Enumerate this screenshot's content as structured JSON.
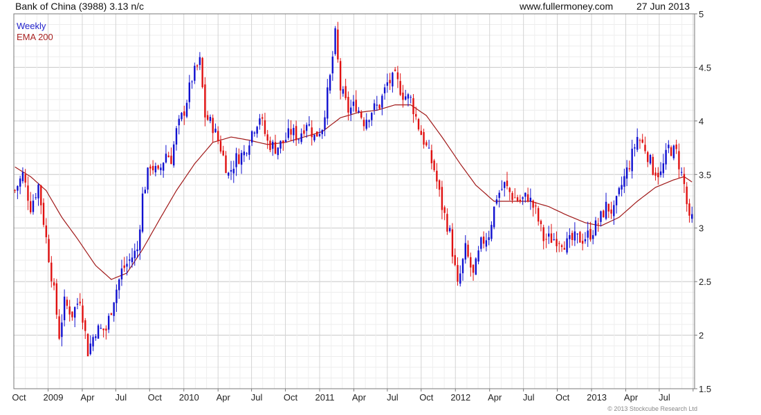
{
  "header": {
    "title": "Bank of China (3988) 3.13 n/c",
    "site": "www.fullermoney.com",
    "date": "27 Jun 2013"
  },
  "footer": {
    "copyright": "© 2013 Stockcube Research Ltd"
  },
  "colors": {
    "up": "#1010d0",
    "down": "#e01010",
    "ema": "#a01818",
    "grid": "#d8d8d8",
    "legend_weekly": "#2222cc",
    "legend_ema": "#aa2222"
  },
  "chart_data": {
    "type": "candlestick",
    "title": "Bank of China (3988) 3.13 n/c",
    "legend": [
      {
        "name": "Weekly",
        "color": "#2222cc"
      },
      {
        "name": "EMA 200",
        "color": "#aa2222"
      }
    ],
    "legend_position": "top-left",
    "ylim": [
      1.5,
      5.0
    ],
    "y_ticks": [
      "1.5",
      "2",
      "2.5",
      "3",
      "3.5",
      "4",
      "4.5",
      "5"
    ],
    "y_axis_side": "right",
    "grid": true,
    "x_labels": [
      "Oct",
      "2009",
      "Apr",
      "Jul",
      "Oct",
      "2010",
      "Apr",
      "Jul",
      "Oct",
      "2011",
      "Apr",
      "Jul",
      "Oct",
      "2012",
      "Apr",
      "Jul",
      "Oct",
      "2013",
      "Apr",
      "Jul"
    ],
    "x_range": [
      "2008-07-01",
      "2013-07-05"
    ],
    "close_path": [
      [
        "2008-07-04",
        3.35
      ],
      [
        "2008-07-25",
        3.5
      ],
      [
        "2008-08-15",
        3.2
      ],
      [
        "2008-09-05",
        3.4
      ],
      [
        "2008-09-26",
        2.9
      ],
      [
        "2008-10-17",
        2.4
      ],
      [
        "2008-10-31",
        2.0
      ],
      [
        "2008-11-14",
        2.3
      ],
      [
        "2008-12-05",
        2.2
      ],
      [
        "2008-12-26",
        2.35
      ],
      [
        "2009-01-16",
        1.85
      ],
      [
        "2009-02-06",
        2.05
      ],
      [
        "2009-03-06",
        2.05
      ],
      [
        "2009-03-27",
        2.35
      ],
      [
        "2009-04-17",
        2.6
      ],
      [
        "2009-05-08",
        2.7
      ],
      [
        "2009-05-29",
        2.8
      ],
      [
        "2009-06-12",
        3.3
      ],
      [
        "2009-07-03",
        3.6
      ],
      [
        "2009-07-24",
        3.5
      ],
      [
        "2009-08-14",
        3.7
      ],
      [
        "2009-08-28",
        3.65
      ],
      [
        "2009-09-11",
        3.9
      ],
      [
        "2009-10-02",
        4.1
      ],
      [
        "2009-10-23",
        4.4
      ],
      [
        "2009-11-13",
        4.55
      ],
      [
        "2009-11-27",
        4.05
      ],
      [
        "2009-12-18",
        3.95
      ],
      [
        "2010-01-08",
        3.75
      ],
      [
        "2010-01-29",
        3.5
      ],
      [
        "2010-02-19",
        3.65
      ],
      [
        "2010-03-12",
        3.7
      ],
      [
        "2010-04-02",
        3.9
      ],
      [
        "2010-04-23",
        4.05
      ],
      [
        "2010-05-14",
        3.8
      ],
      [
        "2010-06-04",
        3.75
      ],
      [
        "2010-06-25",
        3.8
      ],
      [
        "2010-07-16",
        3.9
      ],
      [
        "2010-08-06",
        3.85
      ],
      [
        "2010-08-27",
        4.0
      ],
      [
        "2010-09-17",
        3.85
      ],
      [
        "2010-10-08",
        3.95
      ],
      [
        "2010-10-29",
        4.4
      ],
      [
        "2010-11-12",
        4.8
      ],
      [
        "2010-11-26",
        4.3
      ],
      [
        "2010-12-17",
        4.1
      ],
      [
        "2011-01-07",
        4.15
      ],
      [
        "2011-01-28",
        4.0
      ],
      [
        "2011-02-18",
        4.1
      ],
      [
        "2011-03-11",
        4.15
      ],
      [
        "2011-04-01",
        4.35
      ],
      [
        "2011-04-22",
        4.4
      ],
      [
        "2011-05-13",
        4.25
      ],
      [
        "2011-06-03",
        4.2
      ],
      [
        "2011-06-24",
        3.95
      ],
      [
        "2011-07-15",
        3.75
      ],
      [
        "2011-08-05",
        3.55
      ],
      [
        "2011-08-26",
        3.2
      ],
      [
        "2011-09-16",
        2.95
      ],
      [
        "2011-10-07",
        2.45
      ],
      [
        "2011-10-28",
        2.8
      ],
      [
        "2011-11-18",
        2.55
      ],
      [
        "2011-12-09",
        2.85
      ],
      [
        "2011-12-30",
        2.95
      ],
      [
        "2012-01-20",
        3.3
      ],
      [
        "2012-02-10",
        3.4
      ],
      [
        "2012-03-02",
        3.3
      ],
      [
        "2012-03-23",
        3.25
      ],
      [
        "2012-04-13",
        3.3
      ],
      [
        "2012-05-04",
        3.15
      ],
      [
        "2012-05-25",
        2.9
      ],
      [
        "2012-06-15",
        2.9
      ],
      [
        "2012-07-06",
        2.9
      ],
      [
        "2012-07-27",
        2.85
      ],
      [
        "2012-08-17",
        2.9
      ],
      [
        "2012-09-07",
        2.9
      ],
      [
        "2012-09-28",
        2.95
      ],
      [
        "2012-10-19",
        3.05
      ],
      [
        "2012-11-09",
        3.2
      ],
      [
        "2012-11-30",
        3.15
      ],
      [
        "2012-12-21",
        3.4
      ],
      [
        "2013-01-11",
        3.6
      ],
      [
        "2013-02-01",
        3.85
      ],
      [
        "2013-02-22",
        3.75
      ],
      [
        "2013-03-15",
        3.55
      ],
      [
        "2013-04-05",
        3.5
      ],
      [
        "2013-04-26",
        3.75
      ],
      [
        "2013-05-17",
        3.7
      ],
      [
        "2013-06-07",
        3.4
      ],
      [
        "2013-06-21",
        3.05
      ],
      [
        "2013-06-28",
        3.13
      ]
    ],
    "ema_200": [
      [
        "2008-07-04",
        3.57
      ],
      [
        "2008-08-15",
        3.48
      ],
      [
        "2008-09-26",
        3.35
      ],
      [
        "2008-11-07",
        3.1
      ],
      [
        "2008-12-19",
        2.9
      ],
      [
        "2009-02-06",
        2.65
      ],
      [
        "2009-03-20",
        2.52
      ],
      [
        "2009-05-01",
        2.58
      ],
      [
        "2009-06-12",
        2.8
      ],
      [
        "2009-07-31",
        3.1
      ],
      [
        "2009-09-11",
        3.35
      ],
      [
        "2009-10-30",
        3.6
      ],
      [
        "2009-12-18",
        3.8
      ],
      [
        "2010-02-05",
        3.85
      ],
      [
        "2010-03-26",
        3.82
      ],
      [
        "2010-05-14",
        3.78
      ],
      [
        "2010-07-02",
        3.8
      ],
      [
        "2010-08-20",
        3.85
      ],
      [
        "2010-10-08",
        3.9
      ],
      [
        "2010-11-26",
        4.03
      ],
      [
        "2011-01-14",
        4.08
      ],
      [
        "2011-03-04",
        4.1
      ],
      [
        "2011-04-22",
        4.15
      ],
      [
        "2011-06-03",
        4.15
      ],
      [
        "2011-07-15",
        4.05
      ],
      [
        "2011-08-26",
        3.85
      ],
      [
        "2011-10-14",
        3.6
      ],
      [
        "2011-11-25",
        3.4
      ],
      [
        "2012-01-13",
        3.25
      ],
      [
        "2012-03-02",
        3.25
      ],
      [
        "2012-04-20",
        3.25
      ],
      [
        "2012-06-08",
        3.2
      ],
      [
        "2012-07-27",
        3.12
      ],
      [
        "2012-09-14",
        3.05
      ],
      [
        "2012-10-26",
        3.02
      ],
      [
        "2012-12-14",
        3.1
      ],
      [
        "2013-02-01",
        3.25
      ],
      [
        "2013-03-22",
        3.38
      ],
      [
        "2013-05-10",
        3.45
      ],
      [
        "2013-06-07",
        3.48
      ],
      [
        "2013-06-28",
        3.43
      ]
    ]
  }
}
